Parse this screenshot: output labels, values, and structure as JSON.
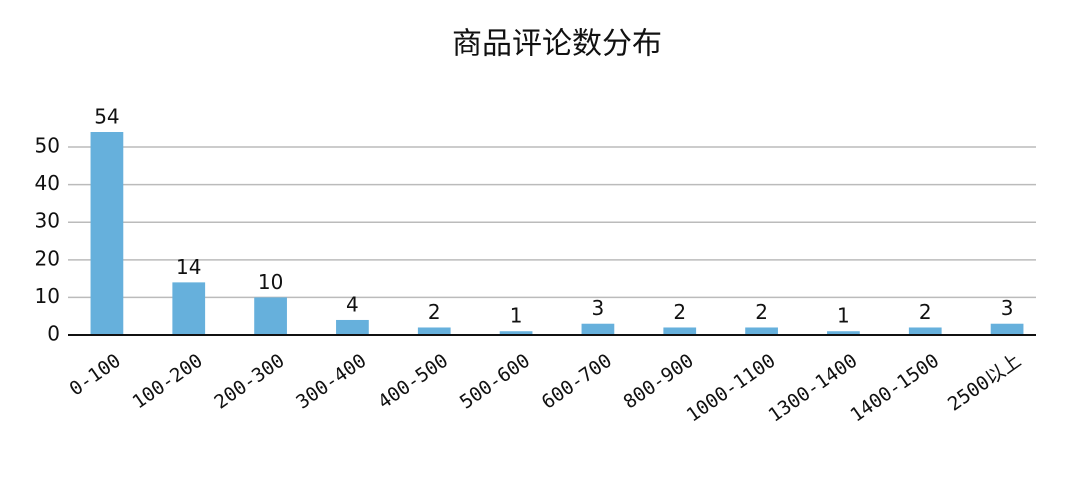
{
  "chart_data": {
    "type": "bar",
    "title": "商品评论数分布",
    "categories": [
      "0-100",
      "100-200",
      "200-300",
      "300-400",
      "400-500",
      "500-600",
      "600-700",
      "800-900",
      "1000-1100",
      "1300-1400",
      "1400-1500",
      "2500以上"
    ],
    "values": [
      54,
      14,
      10,
      4,
      2,
      1,
      3,
      2,
      2,
      1,
      2,
      3
    ],
    "color": "#66b0dc",
    "ylim": [
      0,
      54
    ],
    "yticks": [
      0,
      10,
      20,
      30,
      40,
      50
    ],
    "grid": true
  }
}
